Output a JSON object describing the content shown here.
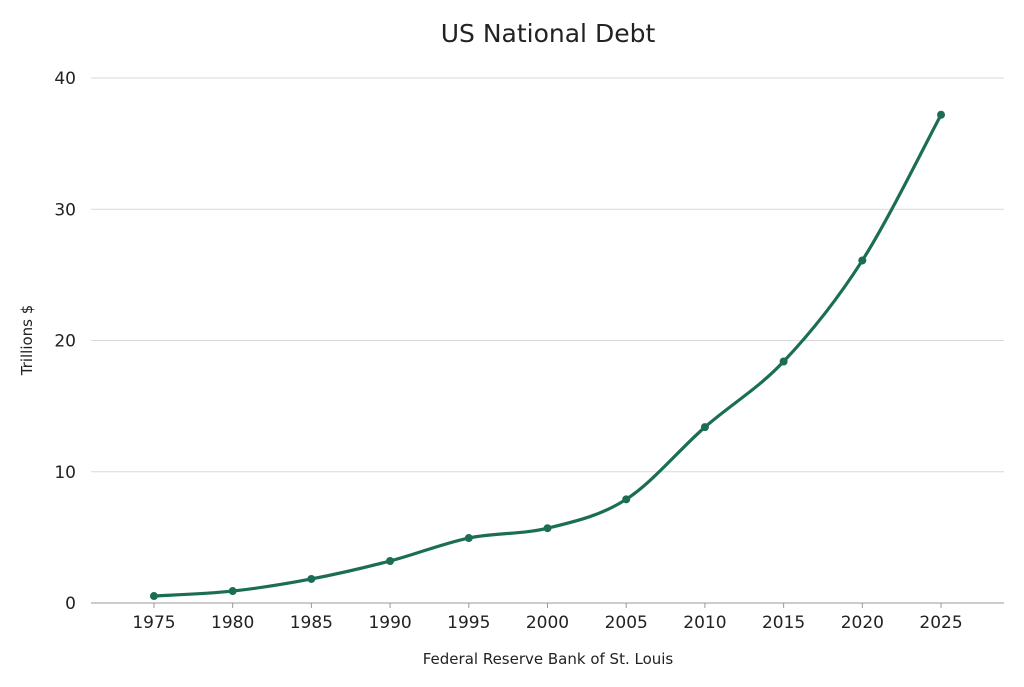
{
  "chart_data": {
    "type": "line",
    "title": "US National Debt",
    "xlabel": "Federal Reserve Bank of St. Louis",
    "ylabel": "Trillions $",
    "x": [
      1975,
      1980,
      1985,
      1990,
      1995,
      2000,
      2005,
      2010,
      2015,
      2020,
      2025
    ],
    "series": [
      {
        "values": [
          0.53,
          0.91,
          1.83,
          3.2,
          4.95,
          5.7,
          7.9,
          13.4,
          18.4,
          26.1,
          37.2
        ]
      }
    ],
    "xticks": [
      "1975",
      "1980",
      "1985",
      "1990",
      "1995",
      "2000",
      "2005",
      "2010",
      "2015",
      "2020",
      "2025"
    ],
    "yticks": [
      "0",
      "10",
      "20",
      "30",
      "40"
    ],
    "ylim": [
      0,
      40
    ],
    "xlim": [
      1971,
      2029
    ],
    "grid": "horizontal",
    "smooth": true,
    "colors": {
      "line": "#1b6e55",
      "grid": "#d9d9d9",
      "axis": "#999999"
    }
  }
}
